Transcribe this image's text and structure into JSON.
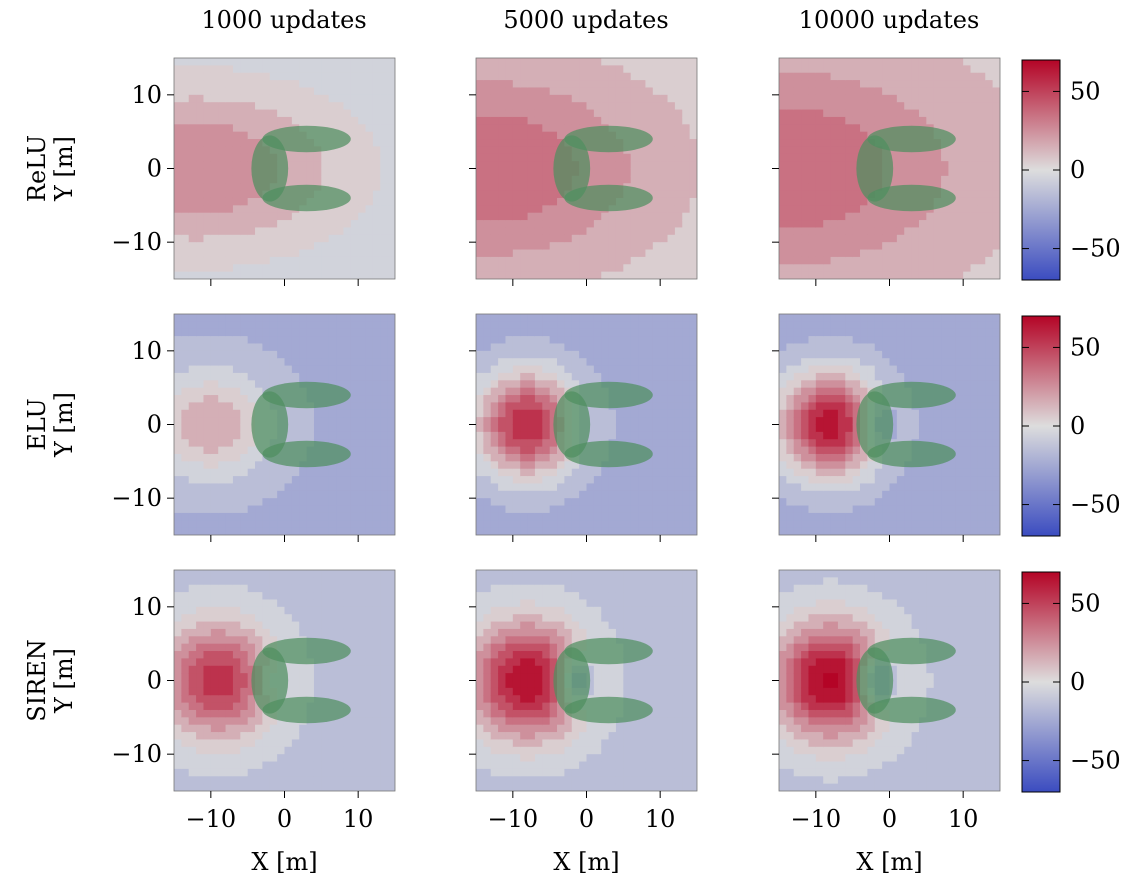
{
  "chart_data": {
    "type": "heatmap",
    "description_kind": "contour",
    "columns": [
      "1000 updates",
      "5000 updates",
      "10000 updates"
    ],
    "rows": [
      "ReLU",
      "ELU",
      "SIREN"
    ],
    "xlabel": "X [m]",
    "ylabel": "Y [m]",
    "xlim": [
      -15,
      15
    ],
    "ylim": [
      -15,
      15
    ],
    "xticks": [
      -10,
      0,
      10
    ],
    "yticks": [
      -10,
      0,
      10
    ],
    "xtick_labels": [
      "−10",
      "0",
      "10"
    ],
    "ytick_labels": [
      "−10",
      "0",
      "10"
    ],
    "colorbar": {
      "range": [
        -70,
        70
      ],
      "ticks": [
        50,
        0,
        -50
      ],
      "tick_labels": [
        "50",
        "0",
        "−50"
      ],
      "colormap": "coolwarm",
      "colors": [
        "#3b4cc0",
        "#dddddd",
        "#b40426"
      ]
    },
    "obstacles": [
      {
        "shape": "ellipse",
        "cx": -2,
        "cy": 0,
        "rx": 2.5,
        "ry": 4.5
      },
      {
        "shape": "ellipse",
        "cx": 3,
        "cy": 4,
        "rx": 6,
        "ry": 1.8
      },
      {
        "shape": "ellipse",
        "cx": 3,
        "cy": -4,
        "rx": 6,
        "ry": 1.8
      }
    ],
    "obstacle_color": "#4f8f5f",
    "panels": [
      {
        "row": "ReLU",
        "column": "1000 updates",
        "baseline": -8,
        "peak": 30,
        "peak_x": -12,
        "peak_y": 0,
        "spread_x": 20,
        "spread_y": 11,
        "hole_depth": 0
      },
      {
        "row": "ReLU",
        "column": "5000 updates",
        "baseline": 4,
        "peak": 40,
        "peak_x": -14,
        "peak_y": 0,
        "spread_x": 22,
        "spread_y": 13,
        "hole_depth": 0
      },
      {
        "row": "ReLU",
        "column": "10000 updates",
        "baseline": 6,
        "peak": 40,
        "peak_x": -15,
        "peak_y": 0,
        "spread_x": 24,
        "spread_y": 14,
        "hole_depth": 0
      },
      {
        "row": "ELU",
        "column": "1000 updates",
        "baseline": -22,
        "peak": 20,
        "peak_x": -10,
        "peak_y": 0,
        "spread_x": 8,
        "spread_y": 7,
        "hole_depth": 0
      },
      {
        "row": "ELU",
        "column": "5000 updates",
        "baseline": -25,
        "peak": 60,
        "peak_x": -8,
        "peak_y": 0,
        "spread_x": 7,
        "spread_y": 7,
        "hole_depth": 20
      },
      {
        "row": "ELU",
        "column": "10000 updates",
        "baseline": -25,
        "peak": 65,
        "peak_x": -8,
        "peak_y": 0,
        "spread_x": 7,
        "spread_y": 7,
        "hole_depth": 35
      },
      {
        "row": "SIREN",
        "column": "1000 updates",
        "baseline": -15,
        "peak": 55,
        "peak_x": -9,
        "peak_y": 0,
        "spread_x": 8,
        "spread_y": 8,
        "hole_depth": 15
      },
      {
        "row": "SIREN",
        "column": "5000 updates",
        "baseline": -15,
        "peak": 70,
        "peak_x": -8,
        "peak_y": 0,
        "spread_x": 8,
        "spread_y": 8,
        "hole_depth": 50
      },
      {
        "row": "SIREN",
        "column": "10000 updates",
        "baseline": -15,
        "peak": 72,
        "peak_x": -8,
        "peak_y": 0,
        "spread_x": 8,
        "spread_y": 8,
        "hole_depth": 60
      }
    ]
  }
}
